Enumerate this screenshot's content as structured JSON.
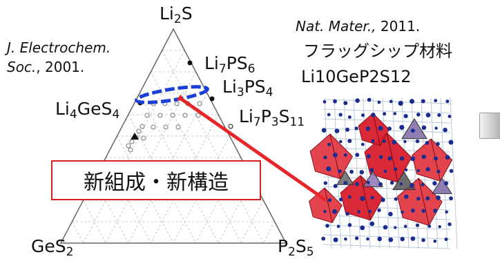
{
  "diagram": {
    "vertices": {
      "top": {
        "base": "Li",
        "sub": "2",
        "tail": "S"
      },
      "bottom_left": {
        "base": "GeS",
        "sub": "2",
        "tail": ""
      },
      "bottom_right": {
        "base": "P",
        "sub": "2",
        "tail": "S",
        "sub2": "5"
      }
    },
    "compounds": {
      "li7ps6": {
        "p1": "Li",
        "s1": "7",
        "p2": "PS",
        "s2": "6"
      },
      "li3ps4": {
        "p1": "Li",
        "s1": "3",
        "p2": "PS",
        "s2": "4"
      },
      "li7p3s11": {
        "p1": "Li",
        "s1": "7",
        "p2": "P",
        "s2": "3",
        "p3": "S",
        "s3": "11"
      },
      "li4ges4": {
        "p1": "Li",
        "s1": "4",
        "p2": "GeS",
        "s2": "4"
      }
    },
    "callout": "新組成・新構造"
  },
  "references": {
    "left": {
      "journal_line1": "J. Electrochem.",
      "journal_line2": "Soc.",
      "year": ", 2001."
    },
    "right": {
      "journal": "Nat. Mater.,",
      "year": " 2011."
    }
  },
  "material": {
    "line1": "フラッグシップ材料",
    "line2": "Li10GeP2S12"
  },
  "colors": {
    "arrow": "#e8262a",
    "ellipse": "#1a3fd6",
    "callout_border": "#d62020",
    "polyhedra_red": "#d81e2c",
    "atoms_blue": "#1b2c8f"
  }
}
